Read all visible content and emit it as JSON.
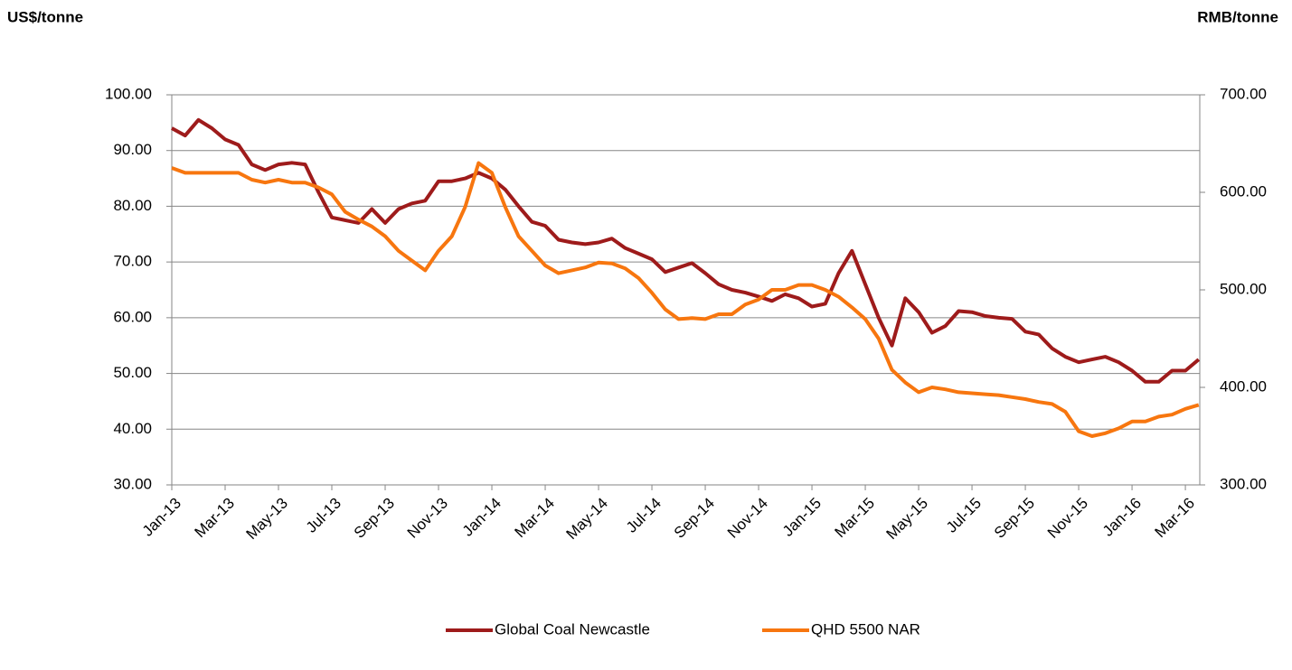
{
  "chart_data": {
    "type": "line",
    "y_label": "US$/tonne",
    "y2_label": "RMB/tonne",
    "categories": [
      "Jan-13",
      null,
      null,
      null,
      "Mar-13",
      null,
      null,
      null,
      "May-13",
      null,
      null,
      null,
      "Jul-13",
      null,
      null,
      null,
      "Sep-13",
      null,
      null,
      null,
      "Nov-13",
      null,
      null,
      null,
      "Jan-14",
      null,
      null,
      null,
      "Mar-14",
      null,
      null,
      null,
      "May-14",
      null,
      null,
      null,
      "Jul-14",
      null,
      null,
      null,
      "Sep-14",
      null,
      null,
      null,
      "Nov-14",
      null,
      null,
      null,
      "Jan-15",
      null,
      null,
      null,
      "Mar-15",
      null,
      null,
      null,
      "May-15",
      null,
      null,
      null,
      "Jul-15",
      null,
      null,
      null,
      "Sep-15",
      null,
      null,
      null,
      "Nov-15",
      null,
      null,
      null,
      "Jan-16",
      null,
      null,
      null,
      "Mar-16",
      null
    ],
    "series": [
      {
        "name": "Global Coal Newcastle",
        "color": "#9e1b1b",
        "axis": "y",
        "values": [
          94,
          92.7,
          95.5,
          94,
          92,
          91,
          87.5,
          86.5,
          87.5,
          87.8,
          87.5,
          82.5,
          78,
          77.5,
          77,
          79.5,
          77,
          79.5,
          80.5,
          81,
          84.5,
          84.5,
          85,
          86,
          85,
          83,
          80,
          77.2,
          76.5,
          74,
          73.5,
          73.2,
          73.5,
          74.2,
          72.5,
          71.5,
          70.5,
          68.2,
          69,
          69.8,
          68,
          66,
          65,
          64.5,
          63.8,
          63,
          64.2,
          63.5,
          62,
          62.5,
          68,
          72,
          66,
          60,
          55,
          63.5,
          61,
          57.3,
          58.5,
          61.2,
          61,
          60.3,
          60,
          59.8,
          57.5,
          57,
          54.5,
          53,
          52,
          52.5,
          53,
          52,
          50.5,
          48.5,
          48.5,
          50.5,
          50.5,
          52.5
        ]
      },
      {
        "name": "QHD 5500 NAR",
        "color": "#f7760f",
        "axis": "y2",
        "values": [
          625,
          620,
          620,
          620,
          620,
          620,
          613,
          610,
          613,
          610,
          610,
          605,
          598,
          580,
          572,
          565,
          555,
          540,
          530,
          520,
          540,
          555,
          585,
          630,
          620,
          585,
          555,
          540,
          525,
          517,
          520,
          523,
          528,
          527,
          522,
          512,
          497,
          480,
          470,
          471,
          470,
          475,
          475,
          485,
          490,
          500,
          500,
          505,
          505,
          500,
          493,
          482,
          470,
          450,
          418,
          405,
          395,
          400,
          398,
          395,
          394,
          393,
          392,
          390,
          388,
          385,
          383,
          375,
          355,
          350,
          353,
          358,
          365,
          365,
          370,
          372,
          378,
          382
        ]
      }
    ],
    "ylim": [
      30,
      100
    ],
    "yticks": [
      {
        "value": 30,
        "label": "30.00"
      },
      {
        "value": 40,
        "label": "40.00"
      },
      {
        "value": 50,
        "label": "50.00"
      },
      {
        "value": 60,
        "label": "60.00"
      },
      {
        "value": 70,
        "label": "70.00"
      },
      {
        "value": 80,
        "label": "80.00"
      },
      {
        "value": 90,
        "label": "90.00"
      },
      {
        "value": 100,
        "label": "100.00"
      }
    ],
    "y2lim": [
      300,
      700
    ],
    "y2ticks": [
      {
        "value": 300,
        "label": "300.00"
      },
      {
        "value": 400,
        "label": "400.00"
      },
      {
        "value": 500,
        "label": "500.00"
      },
      {
        "value": 600,
        "label": "600.00"
      },
      {
        "value": 700,
        "label": "700.00"
      }
    ],
    "grid": true,
    "legend": "bottom"
  }
}
